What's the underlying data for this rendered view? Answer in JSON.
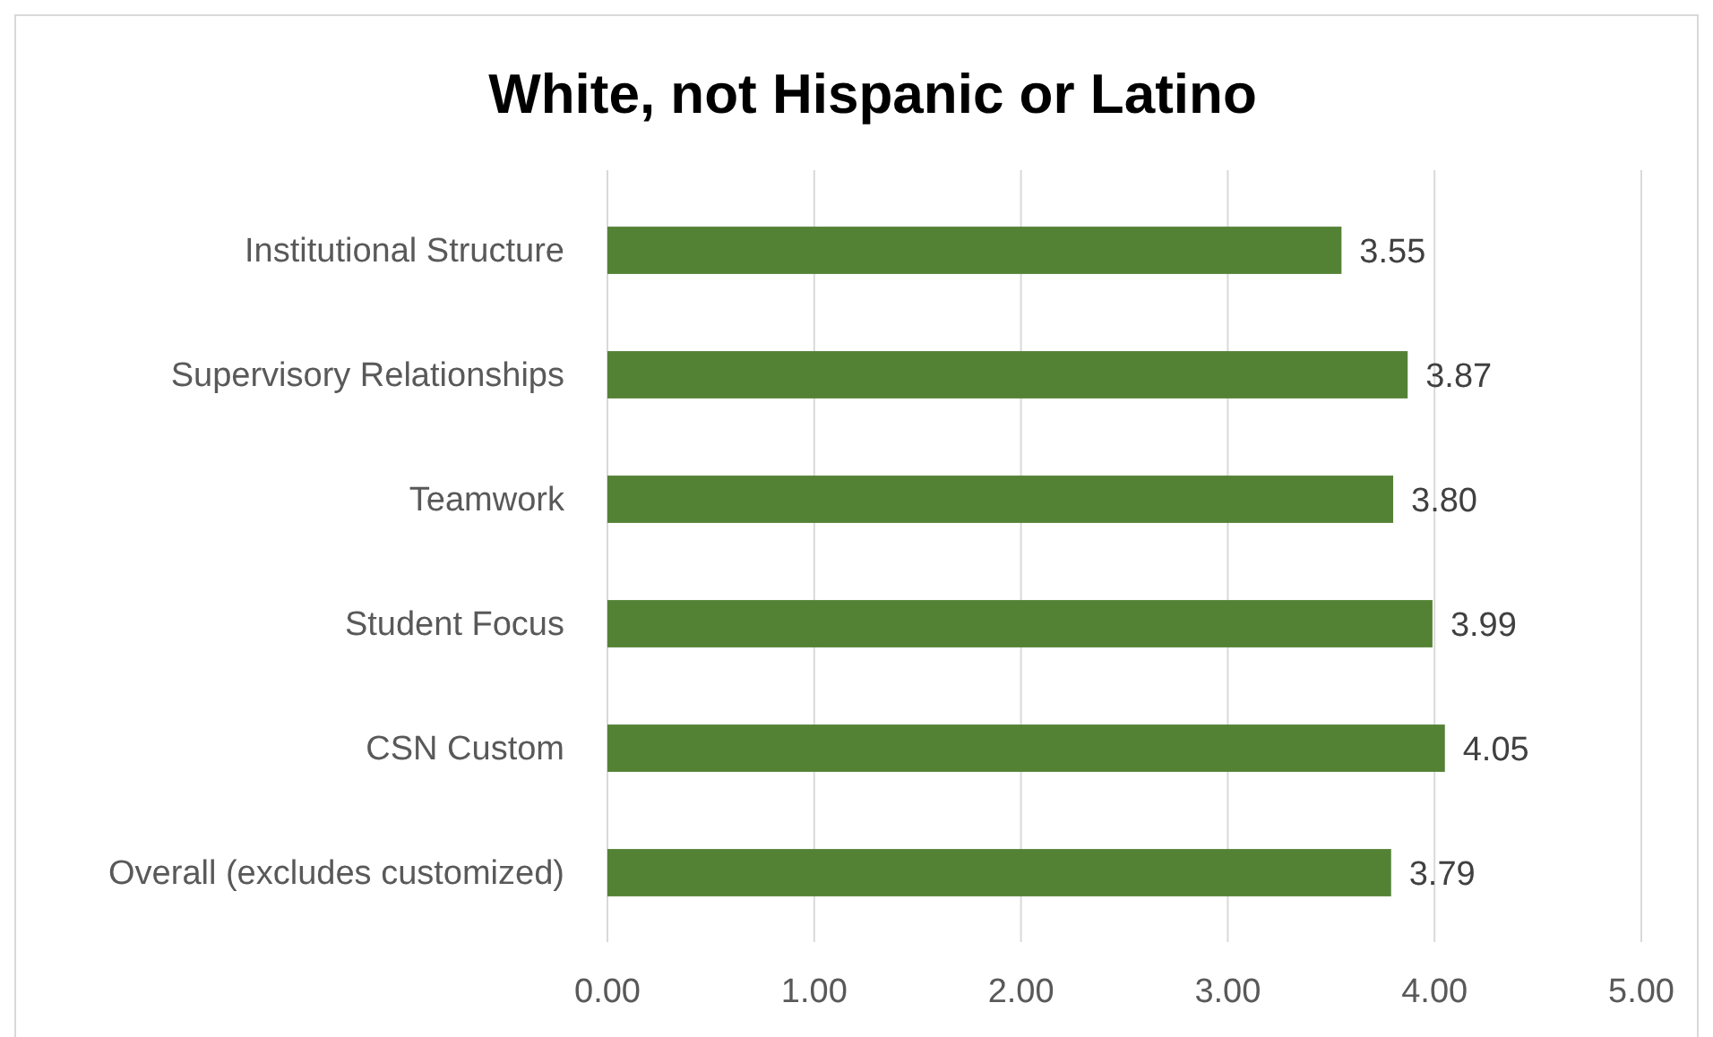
{
  "chart_data": {
    "type": "bar",
    "orientation": "horizontal",
    "title": "White, not Hispanic or Latino",
    "categories": [
      "Institutional Structure",
      "Supervisory Relationships",
      "Teamwork",
      "Student Focus",
      "CSN Custom",
      "Overall (excludes customized)"
    ],
    "values": [
      3.55,
      3.87,
      3.8,
      3.99,
      4.05,
      3.79
    ],
    "value_labels": [
      "3.55",
      "3.87",
      "3.80",
      "3.99",
      "4.05",
      "3.79"
    ],
    "color": "#548235",
    "xlim": [
      0,
      5
    ],
    "xticks": [
      {
        "value": 0,
        "label": "0.00"
      },
      {
        "value": 1,
        "label": "1.00"
      },
      {
        "value": 2,
        "label": "2.00"
      },
      {
        "value": 3,
        "label": "3.00"
      },
      {
        "value": 4,
        "label": "4.00"
      },
      {
        "value": 5,
        "label": "5.00"
      }
    ],
    "grid": "x"
  }
}
